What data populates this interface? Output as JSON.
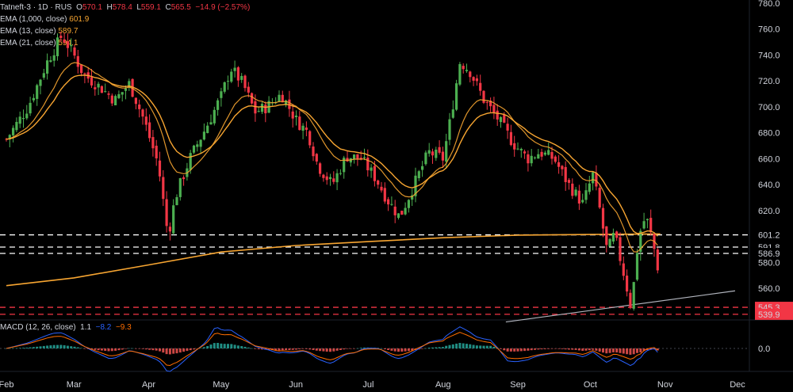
{
  "header": {
    "symbol": "Tatneft-3 · 1D · RUS",
    "o_label": "O",
    "o": "570.1",
    "h_label": "H",
    "h": "578.4",
    "l_label": "L",
    "l": "559.1",
    "c_label": "C",
    "c": "565.5",
    "change": "−14.9 (−2.57%)"
  },
  "indicators": [
    {
      "label": "EMA (1,000, close)",
      "value": "601.9",
      "color": "#f7a531"
    },
    {
      "label": "EMA (13, close)",
      "value": "589.7",
      "color": "#f7a531"
    },
    {
      "label": "EMA (21, close)",
      "value": "594.1",
      "color": "#f7a531"
    }
  ],
  "macd": {
    "label": "MACD (12, 26, close)",
    "v1": "1.1",
    "v2": "−8.2",
    "v3": "−9.3"
  },
  "colors": {
    "up": "#4caf50",
    "down": "#f23645",
    "ema": "#f7a531",
    "white": "#ffffff",
    "macd_line": "#2962ff",
    "signal_line": "#ff6d00"
  },
  "chart_data": {
    "type": "candlestick",
    "y_ticks": [
      560,
      580,
      600,
      620,
      640,
      660,
      680,
      700,
      720,
      740,
      760,
      780
    ],
    "y_tick_labels": [
      "560.0",
      "580.0",
      "600.0",
      "620.0",
      "640.0",
      "660.0",
      "680.0",
      "700.0",
      "720.0",
      "740.0",
      "760.0",
      "780.0"
    ],
    "ylim": [
      530,
      782
    ],
    "x_labels": [
      "Feb",
      "Mar",
      "Apr",
      "May",
      "Jun",
      "Jul",
      "Aug",
      "Sep",
      "Oct",
      "Nov",
      "Dec"
    ],
    "horizontal_levels": [
      {
        "value": 601.2,
        "label": "601.2",
        "color": "#ffffff"
      },
      {
        "value": 591.8,
        "label": "591.8",
        "color": "#ffffff"
      },
      {
        "value": 586.9,
        "label": "586.9",
        "color": "#ffffff"
      },
      {
        "value": 545.3,
        "label": "545.3",
        "color": "#f23645"
      },
      {
        "value": 539.9,
        "label": "539.9",
        "color": "#f23645"
      }
    ],
    "trendline": {
      "from": {
        "date": "Aug 27",
        "price": 534
      },
      "to": {
        "date": "Nov 30",
        "price": 558
      }
    },
    "close_path": [
      [
        "Feb 1",
        675
      ],
      [
        "Feb 10",
        700
      ],
      [
        "Feb 18",
        735
      ],
      [
        "Feb 24",
        755
      ],
      [
        "Mar 1",
        740
      ],
      [
        "Mar 5",
        725
      ],
      [
        "Mar 12",
        715
      ],
      [
        "Mar 18",
        705
      ],
      [
        "Mar 24",
        718
      ],
      [
        "Mar 30",
        690
      ],
      [
        "Apr 5",
        655
      ],
      [
        "Apr 9",
        600
      ],
      [
        "Apr 12",
        630
      ],
      [
        "Apr 18",
        660
      ],
      [
        "Apr 25",
        685
      ],
      [
        "May 1",
        708
      ],
      [
        "May 5",
        730
      ],
      [
        "May 10",
        718
      ],
      [
        "May 15",
        696
      ],
      [
        "May 20",
        700
      ],
      [
        "May 26",
        710
      ],
      [
        "Jun 1",
        690
      ],
      [
        "Jun 6",
        680
      ],
      [
        "Jun 10",
        655
      ],
      [
        "Jun 16",
        640
      ],
      [
        "Jun 22",
        662
      ],
      [
        "Jun 28",
        660
      ],
      [
        "Jul 4",
        645
      ],
      [
        "Jul 9",
        628
      ],
      [
        "Jul 14",
        615
      ],
      [
        "Jul 20",
        640
      ],
      [
        "Jul 26",
        665
      ],
      [
        "Aug 1",
        660
      ],
      [
        "Aug 4",
        690
      ],
      [
        "Aug 8",
        735
      ],
      [
        "Aug 12",
        728
      ],
      [
        "Aug 18",
        705
      ],
      [
        "Aug 24",
        690
      ],
      [
        "Aug 30",
        672
      ],
      [
        "Sep 5",
        660
      ],
      [
        "Sep 10",
        665
      ],
      [
        "Sep 16",
        660
      ],
      [
        "Sep 22",
        640
      ],
      [
        "Sep 28",
        625
      ],
      [
        "Oct 2",
        648
      ],
      [
        "Oct 5",
        620
      ],
      [
        "Oct 8",
        588
      ],
      [
        "Oct 11",
        602
      ],
      [
        "Oct 15",
        570
      ],
      [
        "Oct 18",
        545
      ],
      [
        "Oct 21",
        600
      ],
      [
        "Oct 24",
        616
      ],
      [
        "Oct 27",
        595
      ],
      [
        "Oct 30",
        566
      ]
    ],
    "ema_long_path": [
      [
        "Feb 1",
        562
      ],
      [
        "Mar 1",
        568
      ],
      [
        "Apr 1",
        578
      ],
      [
        "May 1",
        588
      ],
      [
        "Jun 1",
        593
      ],
      [
        "Jul 1",
        596
      ],
      [
        "Aug 1",
        599
      ],
      [
        "Sep 1",
        601
      ],
      [
        "Oct 1",
        601.5
      ],
      [
        "Oct 30",
        601.9
      ]
    ],
    "macd_zero": 0.0,
    "macd_tick_label": "0.0"
  }
}
